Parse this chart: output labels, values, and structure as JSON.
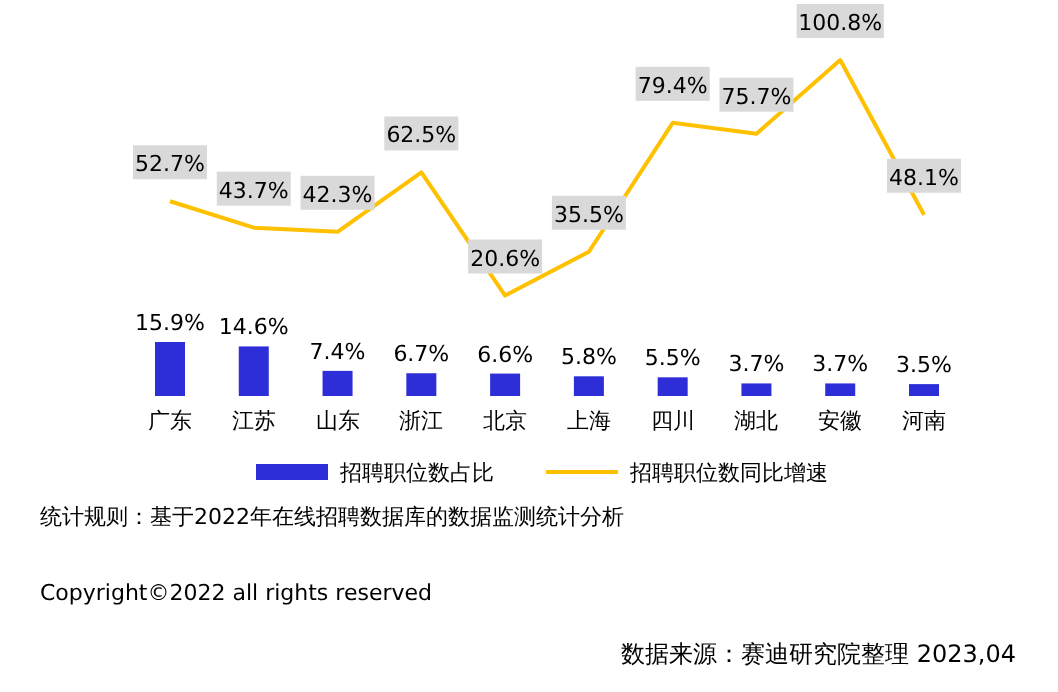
{
  "chart_data": [
    {
      "type": "bar",
      "categories": [
        "广东",
        "江苏",
        "山东",
        "浙江",
        "北京",
        "上海",
        "四川",
        "湖北",
        "安徽",
        "河南"
      ],
      "series": [
        {
          "name": "招聘职位数占比",
          "color": "#2e2ed8",
          "values": [
            15.9,
            14.6,
            7.4,
            6.7,
            6.6,
            5.8,
            5.5,
            3.7,
            3.7,
            3.5
          ],
          "value_labels": [
            "15.9%",
            "14.6%",
            "7.4%",
            "6.7%",
            "6.6%",
            "5.8%",
            "5.5%",
            "3.7%",
            "3.7%",
            "3.5%"
          ]
        }
      ],
      "legend": "bottom",
      "annotations": [
        "统计规则：基于2022年在线招聘数据库的数据监测统计分析",
        "Copyright©2022 all rights reserved",
        "数据来源：赛迪研究院整理 2023,04"
      ]
    },
    {
      "type": "line",
      "categories": [
        null,
        null,
        null,
        null,
        null,
        null,
        null,
        null,
        null,
        null
      ],
      "series": [
        {
          "name": "招聘职位数同比增速",
          "color": "#ffc000",
          "values": [
            52.7,
            43.7,
            42.3,
            62.5,
            20.6,
            35.5,
            79.4,
            75.7,
            100.8,
            48.1
          ],
          "value_labels": [
            "52.7%",
            "43.7%",
            "42.3%",
            "62.5%",
            "20.6%",
            "35.5%",
            "79.4%",
            "75.7%",
            "100.8%",
            "48.1%"
          ]
        }
      ],
      "legend": "bottom"
    }
  ]
}
